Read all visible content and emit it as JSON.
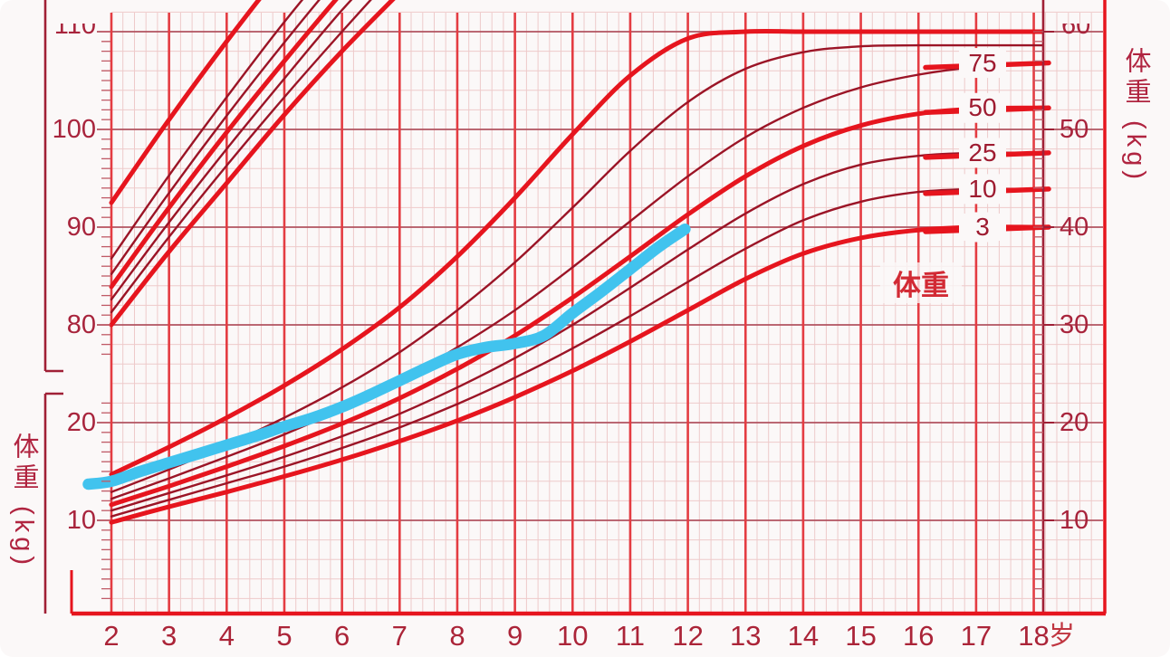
{
  "labels": {
    "left_axis_title": "体重 (kg)",
    "right_axis_title": "体重 (kg)",
    "curve_family_label": "体重",
    "age_unit_suffix": "岁"
  },
  "axes": {
    "x_ticks": [
      2,
      3,
      4,
      5,
      6,
      7,
      8,
      9,
      10,
      11,
      12,
      13,
      14,
      15,
      16,
      17,
      18
    ],
    "left_upper_ticks_cm": [
      110,
      100,
      90,
      80
    ],
    "left_lower_ticks_kg": [
      20,
      10
    ],
    "right_ticks_kg": [
      60,
      50,
      40,
      30,
      20,
      10
    ]
  },
  "percentile_curve_labels": [
    "75",
    "50",
    "25",
    "10",
    "3"
  ],
  "colors": {
    "bright_red": "#e6151e",
    "year_grid_red": "#e43c42",
    "dark_red_curve": "#9b1426",
    "axis_dark_red": "#a02036",
    "text_red": "#a8243c",
    "minor_grid_pink": "#eecaca",
    "major_grid_red": "#b25360",
    "tick_red": "#c05a66",
    "patient_blue": "#41c3ee",
    "background": "#fbf8f8"
  },
  "chart_data": {
    "type": "line",
    "x_unit": "years",
    "x_range": [
      2,
      18
    ],
    "weight_axis_range_kg": [
      10,
      60
    ],
    "height_axis_visible_ticks_cm": [
      80,
      110
    ],
    "grid": "fine red graph-paper grid, on",
    "legend_position": "labels on curves at right edge",
    "weight_percentiles": {
      "ages": [
        2,
        3,
        4,
        5,
        6,
        7,
        8,
        9,
        10,
        11,
        12,
        13,
        14,
        15,
        16,
        17,
        18
      ],
      "series": [
        {
          "name": "weight-p97",
          "percentile": 97,
          "emphasis": true,
          "kg": [
            14.7,
            17.5,
            20.5,
            23.8,
            27.5,
            31.8,
            37.0,
            43.0,
            49.5,
            55.5,
            59.3,
            60,
            60,
            60,
            60,
            60,
            60
          ]
        },
        {
          "name": "weight-p90",
          "percentile": 90,
          "emphasis": false,
          "kg": [
            12.9,
            15.2,
            17.7,
            20.5,
            23.6,
            27.2,
            31.5,
            36.4,
            42.0,
            47.8,
            52.8,
            56.2,
            57.9,
            58.5,
            58.6,
            58.6,
            58.6
          ]
        },
        {
          "name": "weight-p75",
          "percentile": 75,
          "emphasis": false,
          "kg": [
            12.2,
            14.3,
            16.5,
            18.8,
            21.4,
            24.3,
            27.7,
            31.5,
            35.9,
            40.6,
            45.2,
            49.2,
            52.2,
            54.3,
            55.6,
            56.4,
            56.8
          ]
        },
        {
          "name": "weight-p50",
          "percentile": 50,
          "emphasis": true,
          "kg": [
            11.6,
            13.5,
            15.5,
            17.6,
            19.9,
            22.5,
            25.5,
            28.9,
            32.8,
            37.0,
            41.3,
            45.2,
            48.3,
            50.4,
            51.6,
            52.1,
            52.2
          ]
        },
        {
          "name": "weight-p25",
          "percentile": 25,
          "emphasis": false,
          "kg": [
            11.0,
            12.8,
            14.6,
            16.5,
            18.6,
            20.9,
            23.6,
            26.6,
            30.0,
            33.8,
            37.7,
            41.4,
            44.4,
            46.4,
            47.3,
            47.6,
            47.6
          ]
        },
        {
          "name": "weight-p10",
          "percentile": 10,
          "emphasis": false,
          "kg": [
            10.4,
            12.1,
            13.8,
            15.5,
            17.4,
            19.5,
            21.9,
            24.6,
            27.6,
            30.9,
            34.4,
            37.8,
            40.7,
            42.6,
            43.6,
            43.9,
            43.9
          ]
        },
        {
          "name": "weight-p3",
          "percentile": 3,
          "emphasis": true,
          "kg": [
            9.8,
            11.4,
            12.9,
            14.5,
            16.2,
            18.1,
            20.2,
            22.6,
            25.3,
            28.3,
            31.5,
            34.7,
            37.3,
            38.9,
            39.7,
            40,
            40
          ]
        }
      ]
    },
    "height_percentiles": {
      "ages": [
        2,
        3,
        4,
        5,
        6,
        7
      ],
      "note": "steep fan in upper-left, curves exit top of visible area (axis shows 80-110 cm)",
      "series": [
        {
          "name": "height-p97",
          "percentile": 97,
          "emphasis": true,
          "cm": [
            92.5,
            101,
            109,
            116.5,
            123,
            129
          ]
        },
        {
          "name": "height-p90",
          "percentile": 90,
          "emphasis": false,
          "cm": [
            86.8,
            95.3,
            103.3,
            111,
            118,
            124
          ]
        },
        {
          "name": "height-p75",
          "percentile": 75,
          "emphasis": false,
          "cm": [
            85.2,
            93.5,
            101.4,
            108.9,
            116,
            122.5
          ]
        },
        {
          "name": "height-p50",
          "percentile": 50,
          "emphasis": true,
          "cm": [
            83.9,
            92,
            99.7,
            107,
            114,
            120.5
          ]
        },
        {
          "name": "height-p25",
          "percentile": 25,
          "emphasis": false,
          "cm": [
            82.6,
            90.5,
            98,
            105.2,
            112.2,
            118.5
          ]
        },
        {
          "name": "height-p10",
          "percentile": 10,
          "emphasis": false,
          "cm": [
            81.3,
            89,
            96.3,
            103.3,
            110,
            116.5
          ]
        },
        {
          "name": "height-p3",
          "percentile": 3,
          "emphasis": true,
          "cm": [
            80,
            87.5,
            94.5,
            101.5,
            108,
            114
          ]
        }
      ]
    },
    "patient_series": {
      "name": "patient-weight-trajectory",
      "color": "blue",
      "points_age_kg": [
        [
          1.6,
          13.7
        ],
        [
          2,
          14.0
        ],
        [
          2.5,
          15.0
        ],
        [
          3,
          15.9
        ],
        [
          3.5,
          16.8
        ],
        [
          4,
          17.7
        ],
        [
          4.5,
          18.6
        ],
        [
          5,
          19.6
        ],
        [
          5.5,
          20.5
        ],
        [
          6,
          21.6
        ],
        [
          6.5,
          22.9
        ],
        [
          7,
          24.3
        ],
        [
          7.5,
          25.7
        ],
        [
          8,
          27.0
        ],
        [
          8.5,
          27.7
        ],
        [
          9,
          28.1
        ],
        [
          9.5,
          28.9
        ],
        [
          10,
          31.2
        ],
        [
          10.5,
          33.4
        ],
        [
          11,
          35.7
        ],
        [
          11.5,
          38.0
        ],
        [
          11.95,
          39.8
        ]
      ]
    }
  }
}
